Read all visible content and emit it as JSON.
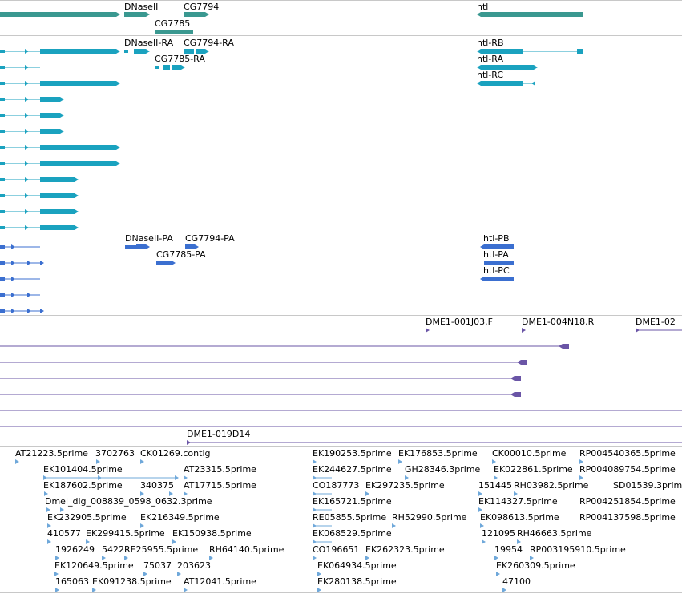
{
  "colors": {
    "gene": "#3a9890",
    "transcript": "#1aa2bf",
    "protein": "#3b6fd0",
    "clone": "#6a55a6",
    "est": "#6fa8da",
    "separator": "#c8c8c8"
  },
  "tracks": {
    "genes": {
      "labels": [
        "DNaseII",
        "CG7794",
        "CG7785",
        "htl"
      ]
    },
    "transcripts": {
      "labels": [
        "DNaseII-RA",
        "CG7794-RA",
        "CG7785-RA",
        "htl-RB",
        "htl-RA",
        "htl-RC"
      ]
    },
    "proteins": {
      "labels": [
        "DNaseII-PA",
        "CG7794-PA",
        "CG7785-PA",
        "htl-PB",
        "htl-PA",
        "htl-PC"
      ]
    },
    "clones": {
      "labels": [
        "DME1-001J03.F",
        "DME1-004N18.R",
        "DME1-02",
        "DME1-019D14"
      ]
    },
    "ests": {
      "labels": [
        "AT21223.5prime",
        "3702763",
        "CK01269.contig",
        "EK101404.5prime",
        "AT23315.5prime",
        "EK187602.5prime",
        "340375",
        "AT17715.5prime",
        "Dmel_dig_008839_0598_0632.3prime",
        "EK232905.5prime",
        "EK216349.5prime",
        "410577",
        "EK299415.5prime",
        "EK150938.5prime",
        "1926249",
        "5422",
        "RE25955.5prime",
        "RH64140.5prime",
        "EK120649.5prime",
        "75037",
        "203623",
        "165063",
        "EK091238.5prime",
        "AT12041.5prime",
        "EK190253.5prime",
        "EK176853.5prime",
        "CK00010.5prime",
        "RP004540365.5prime",
        "EK244627.5prime",
        "GH28346.3prime",
        "EK022861.5prime",
        "RP004089754.5prime",
        "CO187773",
        "EK297235.5prime",
        "151445",
        "RH03982.5prime",
        "SD01539.3prime",
        "EK165721.5prime",
        "EK114327.5prime",
        "RP004251854.5prime",
        "RE05855.5prime",
        "RH52990.5prime",
        "EK098613.5prime",
        "RP004137598.5prime",
        "EK068529.5prime",
        "121095",
        "RH46663.5prime",
        "CO196651",
        "EK262323.5prime",
        "19954",
        "RP003195910.5prime",
        "EK064934.5prime",
        "EK260309.5prime",
        "EK280138.5prime",
        "47100"
      ]
    }
  }
}
